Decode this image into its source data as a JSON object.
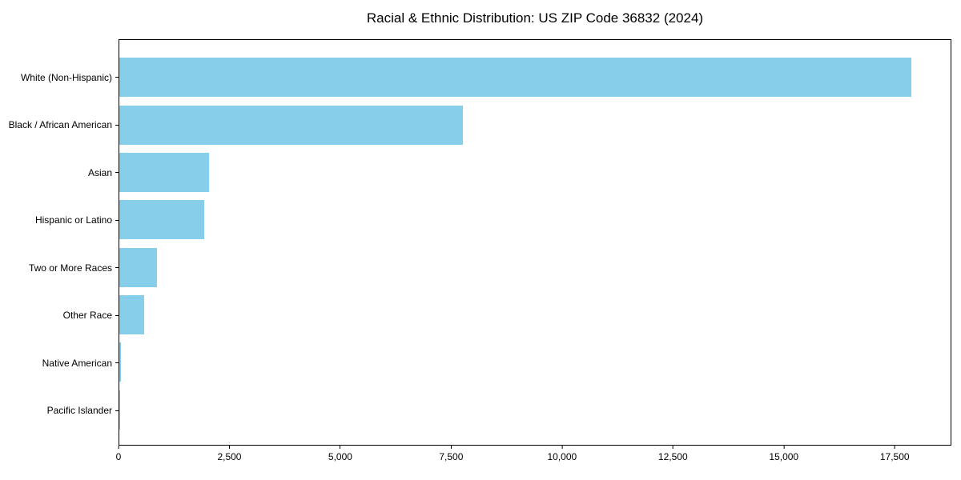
{
  "chart_data": {
    "type": "bar",
    "orientation": "horizontal",
    "title": "Racial & Ethnic Distribution: US ZIP Code 36832 (2024)",
    "categories": [
      "White (Non-Hispanic)",
      "Black / African American",
      "Asian",
      "Hispanic or Latino",
      "Two or More Races",
      "Other Race",
      "Native American",
      "Pacific Islander"
    ],
    "values": [
      17850,
      7740,
      2020,
      1920,
      850,
      560,
      30,
      10
    ],
    "xlabel": "",
    "ylabel": "",
    "xlim": [
      0,
      18742
    ],
    "x_ticks": [
      0,
      2500,
      5000,
      7500,
      10000,
      12500,
      15000,
      17500
    ],
    "x_tick_labels": [
      "0",
      "2,500",
      "5,000",
      "7,500",
      "10,000",
      "12,500",
      "15,000",
      "17,500"
    ],
    "grid": false,
    "legend": "none",
    "bar_color": "#87CEEB",
    "background_color": "#FFFFFF",
    "frame_color": "#000000"
  }
}
